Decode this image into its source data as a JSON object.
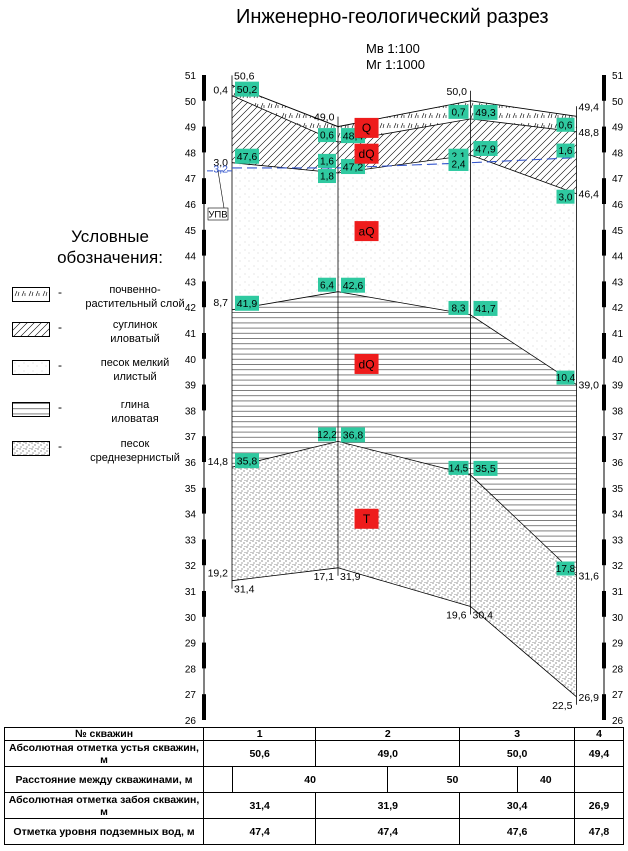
{
  "title": "Инженерно-геологический разрез",
  "scale_vertical": "Мв 1:100",
  "scale_horizontal": "Мг 1:1000",
  "legend": {
    "title_line1": "Условные",
    "title_line2": "обозначения:",
    "items": [
      {
        "key": "soil",
        "dash": "-",
        "line1": "почвенно-",
        "line2": "растительный слой"
      },
      {
        "key": "loam",
        "dash": "-",
        "line1": "суглинок",
        "line2": "иловатый"
      },
      {
        "key": "fine_sand",
        "dash": "-",
        "line1": "песок мелкий",
        "line2": "илистый"
      },
      {
        "key": "clay",
        "dash": "-",
        "line1": "глина",
        "line2": "иловатая"
      },
      {
        "key": "medium_sand",
        "dash": "-",
        "line1": "песок",
        "line2": "среднезернистый"
      }
    ]
  },
  "elevation_ticks": [
    "51",
    "50",
    "49",
    "48",
    "47",
    "46",
    "45",
    "44",
    "43",
    "42",
    "41",
    "40",
    "39",
    "38",
    "37",
    "36",
    "35",
    "34",
    "33",
    "32",
    "31",
    "30",
    "29",
    "28",
    "27",
    "26"
  ],
  "groundwater_label": "УПВ",
  "layer_indices": [
    {
      "text": "Q",
      "x_m": 47,
      "elev": 48.95
    },
    {
      "text": "dQ",
      "x_m": 47,
      "elev": 47.95
    },
    {
      "text": "aQ",
      "x_m": 47,
      "elev": 44.95
    },
    {
      "text": "dQ",
      "x_m": 47,
      "elev": 39.8
    },
    {
      "text": "T",
      "x_m": 47,
      "elev": 33.8
    }
  ],
  "wells": [
    {
      "name": "1",
      "x_m": 0,
      "top": 50.6,
      "depth_labels": [
        "0,4",
        "3,0",
        "3,2",
        "8,7",
        "14,8",
        "19,2"
      ],
      "elev_labels": [
        "50,2",
        "47,6",
        "41,9",
        "35,8",
        "31,4"
      ],
      "top_label": "50,6"
    },
    {
      "name": "2",
      "x_m": 40,
      "top": 49.0,
      "depth_labels": [
        "0,6",
        "1,6",
        "1,8",
        "6,4",
        "12,2",
        "17,1"
      ],
      "elev_labels": [
        "48,4",
        "47,2",
        "42,6",
        "36,8",
        "31,9"
      ],
      "top_label": "49,0"
    },
    {
      "name": "3",
      "x_m": 90,
      "top": 50.0,
      "depth_labels": [
        "0,7",
        "2,1",
        "2,4",
        "8,3",
        "14,5",
        "19,6"
      ],
      "elev_labels": [
        "49,3",
        "47,9",
        "41,7",
        "35,5",
        "30,4"
      ],
      "top_label": "50,0"
    },
    {
      "name": "4",
      "x_m": 130,
      "top": 49.4,
      "depth_labels": [
        "0,6",
        "1,6",
        "3,0",
        "10,4",
        "17,8",
        "22,5"
      ],
      "elev_labels": [
        "48,8",
        "46,4",
        "39,0",
        "31,6",
        "26,9"
      ],
      "top_label": "49,4"
    }
  ],
  "layer_bottoms": {
    "soil": [
      50.2,
      48.4,
      49.3,
      48.8
    ],
    "loam": [
      47.6,
      47.2,
      47.9,
      46.4
    ],
    "fine_sand": [
      41.9,
      42.6,
      41.7,
      39.0
    ],
    "clay": [
      35.8,
      36.8,
      35.5,
      31.6
    ],
    "medium_sand": [
      31.4,
      31.9,
      30.4,
      26.9
    ]
  },
  "groundwater_levels": [
    47.4,
    47.4,
    47.6,
    47.8
  ],
  "table": {
    "rows": [
      {
        "label": "№ скважин",
        "values": [
          "1",
          "2",
          "3",
          "4"
        ]
      },
      {
        "label": "Абсолютная отметка устья скважин, м",
        "values": [
          "50,6",
          "49,0",
          "50,0",
          "49,4"
        ]
      },
      {
        "label": "Расстояние между скважинами, м",
        "values": [
          "40",
          "50",
          "40"
        ]
      },
      {
        "label": "Абсолютная отметка забоя скважин, м",
        "values": [
          "31,4",
          "31,9",
          "30,4",
          "26,9"
        ]
      },
      {
        "label": "Отметка уровня подземных вод, м",
        "values": [
          "47,4",
          "47,4",
          "47,6",
          "47,8"
        ]
      }
    ]
  },
  "colors": {
    "label_box": "#2fc9a0",
    "index_box": "#ee1c1c",
    "water": "#3355cc"
  }
}
